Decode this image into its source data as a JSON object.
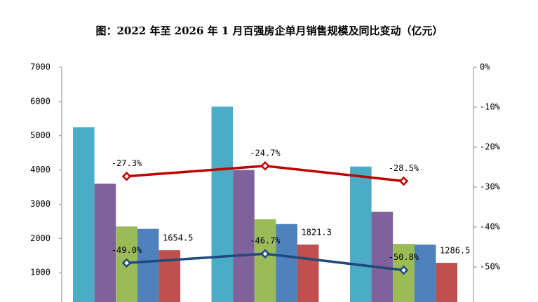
{
  "chart_data": {
    "type": "bar",
    "title": "图：2022 年至 2026 年 1 月百强房企单月销售规模及同比变动（亿元）",
    "categories": [
      null,
      null,
      null
    ],
    "series": [
      {
        "color": "#4aacc5",
        "values": [
          5250,
          5850,
          4100
        ]
      },
      {
        "color": "#7f619c",
        "values": [
          3600,
          4000,
          2780
        ]
      },
      {
        "color": "#9bbb59",
        "values": [
          2350,
          2560,
          1840
        ]
      },
      {
        "color": "#4f81bd",
        "values": [
          2280,
          2420,
          1820
        ]
      },
      {
        "color": "#c0504d",
        "values": [
          1654.5,
          1821.3,
          1286.5
        ],
        "show_labels": true
      },
      {
        "type": "line",
        "axis": "y2",
        "color": "#c00000",
        "values": [
          -27.3,
          -24.7,
          -28.5
        ],
        "value_labels": [
          "-27.3%",
          "-24.7%",
          "-28.5%"
        ]
      },
      {
        "type": "line",
        "axis": "y2",
        "color": "#1f497d",
        "values": [
          -49.0,
          -46.7,
          -50.8
        ],
        "value_labels": [
          "-49.0%",
          "-46.7%",
          "-50.8%"
        ]
      }
    ],
    "ylim": [
      0,
      7000
    ],
    "yticks": [
      1000,
      2000,
      3000,
      4000,
      5000,
      6000,
      7000
    ],
    "y2lim": [
      -60,
      0
    ],
    "y2ticks": [
      {
        "value": 0,
        "label": "0%"
      },
      {
        "value": -10,
        "label": "-10%"
      },
      {
        "value": -20,
        "label": "-20%"
      },
      {
        "value": -30,
        "label": "-30%"
      },
      {
        "value": -40,
        "label": "-40%"
      },
      {
        "value": -50,
        "label": "-50%"
      }
    ]
  }
}
